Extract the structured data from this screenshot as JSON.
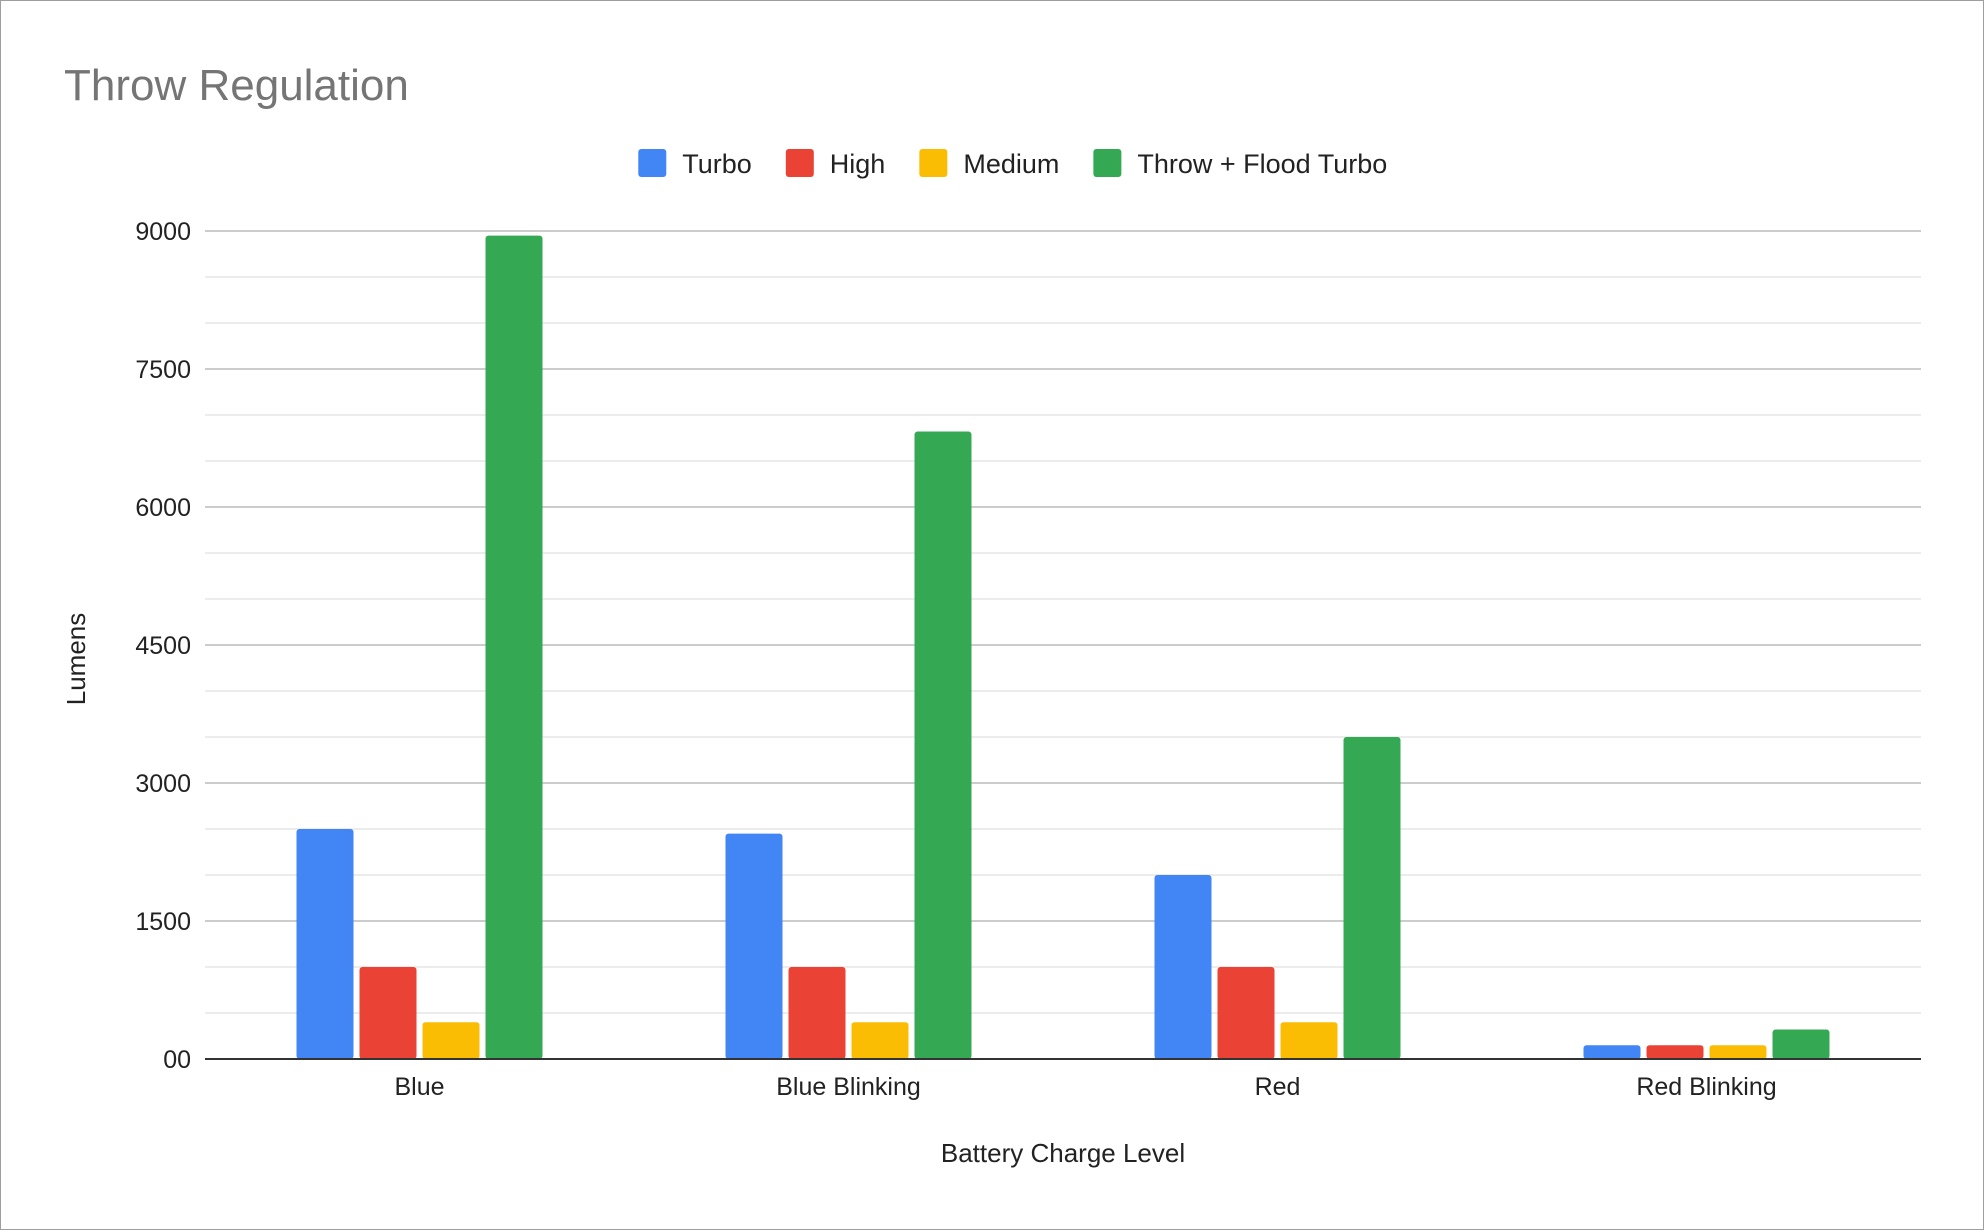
{
  "chart_data": {
    "type": "bar",
    "title": "Throw Regulation",
    "xlabel": "Battery Charge Level",
    "ylabel": "Lumens",
    "categories": [
      "Blue",
      "Blue Blinking",
      "Red",
      "Red Blinking"
    ],
    "series": [
      {
        "name": "Turbo",
        "color": "#4285F4",
        "values": [
          2500,
          2450,
          2000,
          150
        ]
      },
      {
        "name": "High",
        "color": "#EA4335",
        "values": [
          1000,
          1000,
          1000,
          150
        ]
      },
      {
        "name": "Medium",
        "color": "#FBBC04",
        "values": [
          400,
          400,
          400,
          150
        ]
      },
      {
        "name": "Throw + Flood Turbo",
        "color": "#34A853",
        "values": [
          8950,
          6820,
          3500,
          320
        ]
      }
    ],
    "yticks": [
      "00",
      "1500",
      "3000",
      "4500",
      "6000",
      "7500",
      "9000"
    ],
    "ylim": [
      0,
      9000
    ],
    "grid": true,
    "legend_position": "top"
  }
}
